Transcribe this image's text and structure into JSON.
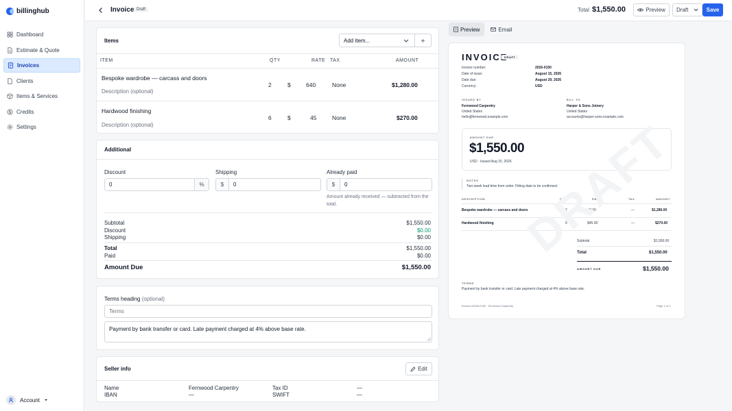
{
  "brand": {
    "name": "billinghub"
  },
  "sidebar": {
    "items": [
      {
        "label": "Dashboard",
        "icon": "grid-icon"
      },
      {
        "label": "Estimate & Quote",
        "icon": "document-icon"
      },
      {
        "label": "Invoices",
        "icon": "invoice-icon"
      },
      {
        "label": "Clients",
        "icon": "clients-icon"
      },
      {
        "label": "Items & Services",
        "icon": "box-icon"
      },
      {
        "label": "Credits",
        "icon": "credit-icon"
      },
      {
        "label": "Settings",
        "icon": "gear-icon"
      }
    ],
    "active": "Invoices",
    "account_label": "Account"
  },
  "topbar": {
    "title": "Invoice",
    "status": "Draft",
    "total_label": "Total",
    "total_value": "$1,550.00",
    "preview_label": "Preview",
    "status_select": "Draft",
    "save_label": "Save"
  },
  "items": {
    "title": "Items",
    "add_placeholder": "Add item...",
    "headers": {
      "item": "ITEM",
      "qty": "QTY",
      "rate": "RATE",
      "tax": "TAX",
      "amount": "AMOUNT"
    },
    "rows": [
      {
        "name": "Bespoke wardrobe — carcass and doors",
        "description": "Description (optional)",
        "qty": "2",
        "currency": "$",
        "rate": "640",
        "tax": "None",
        "amount": "$1,280.00"
      },
      {
        "name": "Hardwood finishing",
        "description": "Description (optional)",
        "qty": "6",
        "currency": "$",
        "rate": "45",
        "tax": "None",
        "amount": "$270.00"
      }
    ]
  },
  "additional": {
    "title": "Additional",
    "discount_label": "Discount",
    "discount_value": "0",
    "discount_unit": "%",
    "shipping_label": "Shipping",
    "shipping_prefix": "$",
    "shipping_value": "0",
    "paid_label": "Already paid",
    "paid_prefix": "$",
    "paid_value": "0",
    "paid_help": "Amount already received — subtracted from the total.",
    "summary": {
      "subtotal_label": "Subtotal",
      "subtotal": "$1,550.00",
      "discount_label": "Discount",
      "discount": "$0.00",
      "shipping_label": "Shipping",
      "shipping": "$0.00",
      "total_label": "Total",
      "total": "$1,550.00",
      "paid_label": "Paid",
      "paid": "$0.00",
      "due_label": "Amount Due",
      "due": "$1,550.00"
    }
  },
  "terms": {
    "label": "Terms heading",
    "optional": "(optional)",
    "heading_placeholder": "Terms",
    "text": "Payment by bank transfer or card. Late payment charged at 4% above base rate."
  },
  "seller": {
    "title": "Seller info",
    "edit_label": "Edit",
    "name_label": "Name",
    "name_value": "Fernwood Carpentry",
    "iban_label": "IBAN",
    "iban_value": "—",
    "taxid_label": "Tax ID",
    "taxid_value": "—",
    "swift_label": "SWIFT",
    "swift_value": "—"
  },
  "preview": {
    "tab_preview": "Preview",
    "tab_email": "Email",
    "heading": "INVOICE",
    "badge": "DRAFT",
    "watermark": "DRAFT",
    "meta": [
      {
        "label": "Invoice number:",
        "value": "2026-0150"
      },
      {
        "label": "Date of issue:",
        "value": "August 15, 2026"
      },
      {
        "label": "Date due:",
        "value": "August 29, 2026"
      },
      {
        "label": "Currency:",
        "value": "USD"
      }
    ],
    "issued_by": {
      "label": "ISSUED BY",
      "name": "Fernwood Carpentry",
      "country": "United States",
      "email": "hello@fernwood.example.com"
    },
    "bill_to": {
      "label": "BILL TO",
      "name": "Harper & Sons Joinery",
      "country": "United States",
      "email": "accounts@harper-sons.example.com"
    },
    "amount_due": {
      "label": "AMOUNT DUE",
      "value": "$1,550.00",
      "sub": "USD · Issued Aug 15, 2026"
    },
    "notes": {
      "label": "NOTES",
      "text": "Two-week lead time from order. Fitting date to be confirmed."
    },
    "headers": {
      "description": "DESCRIPTION",
      "qty": "QTY",
      "rate": "RATE",
      "tax": "TAX",
      "amount": "AMOUNT"
    },
    "rows": [
      {
        "name": "Bespoke wardrobe — carcass and doors",
        "qty": "2",
        "rate": "$640.00",
        "tax": "—",
        "amount": "$1,280.00"
      },
      {
        "name": "Hardwood finishing",
        "qty": "6",
        "rate": "$45.00",
        "tax": "—",
        "amount": "$270.00"
      }
    ],
    "subtotal_label": "Subtotal",
    "subtotal": "$1,550.00",
    "total_label": "Total",
    "total": "$1,550.00",
    "due_label": "AMOUNT DUE",
    "due": "$1,550.00",
    "terms_label": "TERMS",
    "terms_text": "Payment by bank transfer or card. Late payment charged at 4% above base rate.",
    "footer_left": "Invoice #2026-0150 · Fernwood Carpentry",
    "footer_right": "Page 1 of 1"
  }
}
